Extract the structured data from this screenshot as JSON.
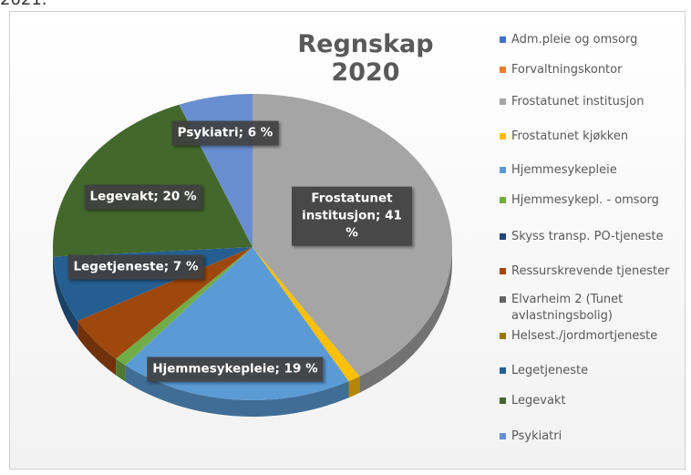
{
  "page_text": "2021.",
  "chart_data": {
    "type": "pie3d",
    "title": "Regnskap 2020",
    "categories": [
      "Adm.pleie og omsorg",
      "Forvaltningskontor",
      "Frostatunet institusjon",
      "Frostatunet kjøkken",
      "Hjemmesykepleie",
      "Hjemmesykepl. - omsorg",
      "Skyss transp. PO-tjeneste",
      "Ressurskrevende tjenester",
      "Elvarheim 2 (Tunet avlastningsbolig)",
      "Helsest./jordmortjeneste",
      "Legetjeneste",
      "Legevakt",
      "Psykiatri"
    ],
    "values": [
      0,
      0,
      41,
      1,
      19,
      1,
      0,
      5,
      0,
      0,
      7,
      20,
      6
    ],
    "value_labels": [
      null,
      null,
      "Frostatunet institusjon; 41 %",
      null,
      "Hjemmesykepleie; 19 %",
      null,
      null,
      null,
      null,
      null,
      "Legetjeneste; 7 %",
      "Legevakt; 20 %",
      "Psykiatri; 6 %"
    ],
    "colors": [
      "#4472c4",
      "#ed7d31",
      "#a5a5a5",
      "#ffc000",
      "#5b9bd5",
      "#70ad47",
      "#264478",
      "#9e480e",
      "#636363",
      "#997300",
      "#255e91",
      "#43682b",
      "#698ed0"
    ],
    "legend": "right"
  }
}
